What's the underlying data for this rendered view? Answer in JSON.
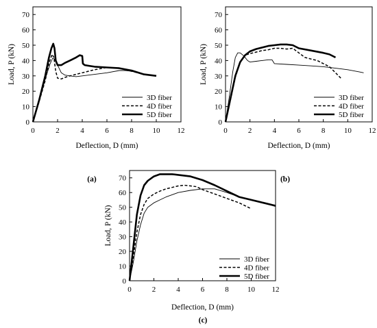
{
  "chart_data": [
    {
      "type": "line",
      "panel_label": "(a)",
      "xlabel": "Deflection,  D (mm)",
      "ylabel": "Load,  P (kN)",
      "xlim": [
        0,
        12
      ],
      "ylim": [
        0,
        75
      ],
      "xticks": [
        0,
        2,
        4,
        6,
        8,
        10,
        12
      ],
      "yticks": [
        0,
        10,
        20,
        30,
        40,
        50,
        60,
        70
      ],
      "legend_position": "bottom-right",
      "series": [
        {
          "name": "3D fiber",
          "style": "thin-solid",
          "x": [
            0,
            0.5,
            1.0,
            1.4,
            1.6,
            1.75,
            2.0,
            2.3,
            2.6,
            3.0,
            3.5,
            4.0,
            4.5,
            5.0,
            6.0,
            7.0,
            7.5,
            8.0,
            8.5,
            9.0,
            9.5,
            10.0
          ],
          "y": [
            0,
            13,
            28,
            38,
            41.5,
            41,
            37,
            32,
            30.5,
            30,
            29.5,
            30,
            30.5,
            31,
            32,
            33.5,
            33.5,
            33,
            32,
            31,
            30.5,
            30
          ]
        },
        {
          "name": "4D fiber",
          "style": "dashed",
          "x": [
            0,
            0.5,
            1.0,
            1.3,
            1.55,
            1.7,
            1.85,
            2.0,
            2.3,
            2.6,
            3.0,
            4.0,
            5.0,
            6.0,
            7.0,
            8.0,
            9.0,
            10.0
          ],
          "y": [
            0,
            13,
            27,
            38,
            44,
            42,
            33,
            28.5,
            28,
            29,
            30,
            32,
            34,
            35.5,
            35,
            33,
            31,
            30
          ]
        },
        {
          "name": "5D fiber",
          "style": "thick-solid",
          "x": [
            0,
            0.5,
            1.0,
            1.3,
            1.5,
            1.65,
            1.75,
            1.85,
            2.0,
            2.3,
            2.6,
            3.0,
            3.5,
            3.8,
            4.0,
            4.05,
            4.2,
            5.0,
            6.0,
            7.0,
            8.0,
            9.0,
            10.0
          ],
          "y": [
            0,
            14,
            30,
            42,
            48,
            51,
            48,
            40,
            37,
            37,
            38.5,
            40,
            42,
            43.5,
            43,
            38,
            37,
            36,
            35.5,
            35,
            33.5,
            31,
            30
          ]
        }
      ]
    },
    {
      "type": "line",
      "panel_label": "(b)",
      "xlabel": "Deflection,  D (mm)",
      "ylabel": "Load,  P (kN)",
      "xlim": [
        0,
        12
      ],
      "ylim": [
        0,
        75
      ],
      "xticks": [
        0,
        2,
        4,
        6,
        8,
        10,
        12
      ],
      "yticks": [
        0,
        10,
        20,
        30,
        40,
        50,
        60,
        70
      ],
      "legend_position": "bottom-right",
      "series": [
        {
          "name": "3D fiber",
          "style": "thin-solid",
          "x": [
            0,
            0.3,
            0.6,
            0.8,
            1.0,
            1.2,
            1.5,
            1.8,
            2.0,
            2.5,
            3.0,
            3.5,
            3.8,
            4.0,
            5.0,
            6.0,
            7.0,
            8.0,
            9.0,
            10.0,
            11.0,
            11.3
          ],
          "y": [
            0,
            16,
            33,
            42,
            45,
            45,
            43,
            40,
            39,
            39.5,
            40,
            40.5,
            40.5,
            38,
            37.5,
            37,
            36.5,
            36,
            35,
            34,
            32.5,
            32
          ]
        },
        {
          "name": "4D fiber",
          "style": "dashed",
          "x": [
            0,
            0.4,
            0.8,
            1.2,
            1.6,
            2.0,
            2.5,
            3.0,
            3.5,
            4.0,
            4.5,
            5.0,
            5.5,
            6.0,
            6.5,
            7.0,
            7.5,
            8.0,
            8.5,
            9.0,
            9.5
          ],
          "y": [
            0,
            14,
            29,
            39,
            43.5,
            44.5,
            45.5,
            46.5,
            47,
            48,
            48,
            47.5,
            48,
            45,
            42,
            41,
            40,
            38,
            36,
            32,
            28
          ]
        },
        {
          "name": "5D fiber",
          "style": "thick-solid",
          "x": [
            0,
            0.4,
            0.8,
            1.2,
            1.6,
            2.0,
            2.5,
            3.0,
            3.5,
            4.0,
            4.5,
            5.0,
            5.5,
            6.0,
            7.0,
            8.0,
            8.5,
            9.0
          ],
          "y": [
            0,
            15,
            30,
            39,
            43.5,
            46,
            47.5,
            48.5,
            49.5,
            50,
            50.5,
            50.5,
            50,
            48,
            46.5,
            45,
            44,
            42
          ]
        }
      ]
    },
    {
      "type": "line",
      "panel_label": "(c)",
      "xlabel": "Deflection,  D (mm)",
      "ylabel": "Load,  P (kN)",
      "xlim": [
        0,
        12
      ],
      "ylim": [
        0,
        75
      ],
      "xticks": [
        0,
        2,
        4,
        6,
        8,
        10,
        12
      ],
      "yticks": [
        0,
        10,
        20,
        30,
        40,
        50,
        60,
        70
      ],
      "legend_position": "bottom-right",
      "series": [
        {
          "name": "3D fiber",
          "style": "thin-solid",
          "x": [
            0,
            0.3,
            0.6,
            0.9,
            1.2,
            1.5,
            2.0,
            2.5,
            3.0,
            3.5,
            4.0,
            5.0,
            6.0,
            7.0,
            8.0,
            9.0,
            10.0,
            11.0,
            12.0
          ],
          "y": [
            0,
            12,
            27,
            38,
            46,
            50,
            53,
            55,
            57,
            58.5,
            60,
            61.5,
            62.5,
            62.5,
            60,
            57,
            55,
            53,
            50.5
          ]
        },
        {
          "name": "4D fiber",
          "style": "dashed",
          "x": [
            0,
            0.3,
            0.6,
            0.9,
            1.2,
            1.5,
            2.0,
            2.5,
            3.0,
            3.5,
            4.0,
            4.5,
            5.0,
            5.5,
            6.0,
            7.0,
            8.0,
            9.0,
            10.0
          ],
          "y": [
            0,
            16,
            33,
            45,
            52,
            56,
            59,
            61,
            62.5,
            63.5,
            64.5,
            65,
            64.5,
            64,
            62,
            59,
            56,
            53,
            49
          ]
        },
        {
          "name": "5D fiber",
          "style": "thick-solid",
          "x": [
            0,
            0.3,
            0.6,
            0.9,
            1.2,
            1.5,
            2.0,
            2.5,
            3.0,
            3.5,
            4.0,
            5.0,
            6.0,
            7.0,
            8.0,
            9.0,
            10.0,
            11.0,
            12.0
          ],
          "y": [
            0,
            22,
            45,
            58,
            65,
            68,
            71,
            72.5,
            72.5,
            72.5,
            72,
            71,
            68.5,
            65,
            61,
            57,
            55,
            53,
            51
          ]
        }
      ]
    }
  ]
}
